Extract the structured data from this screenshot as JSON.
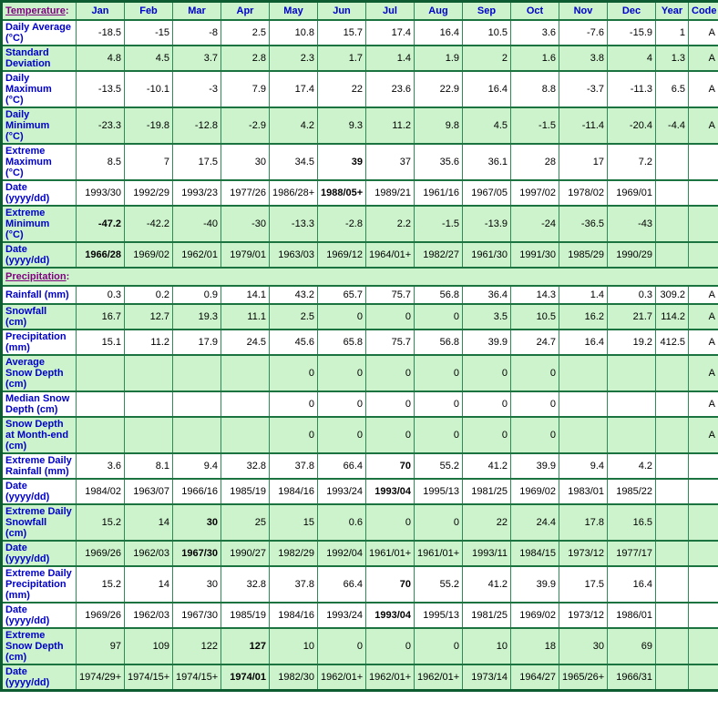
{
  "colors": {
    "row_green": "#ccf3cc",
    "row_white": "#ffffff",
    "border_dark": "#0d5c31",
    "border_mid": "#1b7340",
    "border_light": "#2e8b57",
    "label_blue": "#0000cc",
    "section_purple": "#800080"
  },
  "table": {
    "temperature_section": {
      "title": "Temperature",
      "colon": ":"
    },
    "column_headers": [
      "Jan",
      "Feb",
      "Mar",
      "Apr",
      "May",
      "Jun",
      "Jul",
      "Aug",
      "Sep",
      "Oct",
      "Nov",
      "Dec",
      "Year",
      "Code"
    ],
    "rows": [
      {
        "name": "daily-average",
        "label": "Daily Average\n(°C)",
        "bg": "w",
        "values": [
          "-18.5",
          "-15",
          "-8",
          "2.5",
          "10.8",
          "15.7",
          "17.4",
          "16.4",
          "10.5",
          "3.6",
          "-7.6",
          "-15.9",
          "1",
          "A"
        ]
      },
      {
        "name": "standard-deviation",
        "label": "Standard\nDeviation",
        "bg": "g",
        "values": [
          "4.8",
          "4.5",
          "3.7",
          "2.8",
          "2.3",
          "1.7",
          "1.4",
          "1.9",
          "2",
          "1.6",
          "3.8",
          "4",
          "1.3",
          "A"
        ]
      },
      {
        "name": "daily-maximum",
        "label": "Daily\nMaximum\n(°C)",
        "bg": "w",
        "values": [
          "-13.5",
          "-10.1",
          "-3",
          "7.9",
          "17.4",
          "22",
          "23.6",
          "22.9",
          "16.4",
          "8.8",
          "-3.7",
          "-11.3",
          "6.5",
          "A"
        ]
      },
      {
        "name": "daily-minimum",
        "label": "Daily\nMinimum\n(°C)",
        "bg": "g",
        "values": [
          "-23.3",
          "-19.8",
          "-12.8",
          "-2.9",
          "4.2",
          "9.3",
          "11.2",
          "9.8",
          "4.5",
          "-1.5",
          "-11.4",
          "-20.4",
          "-4.4",
          "A"
        ]
      },
      {
        "name": "extreme-maximum",
        "label": "Extreme\nMaximum\n(°C)",
        "bg": "w",
        "sep": true,
        "bold": [
          5
        ],
        "values": [
          "8.5",
          "7",
          "17.5",
          "30",
          "34.5",
          "39",
          "37",
          "35.6",
          "36.1",
          "28",
          "17",
          "7.2",
          "",
          ""
        ]
      },
      {
        "name": "extreme-maximum-date",
        "label": "Date\n(yyyy/dd)",
        "bg": "w",
        "bold": [
          5
        ],
        "values": [
          "1993/30",
          "1992/29",
          "1993/23",
          "1977/26",
          "1986/28+",
          "1988/05+",
          "1989/21",
          "1961/16",
          "1967/05",
          "1997/02",
          "1978/02",
          "1969/01",
          "",
          ""
        ]
      },
      {
        "name": "extreme-minimum",
        "label": "Extreme\nMinimum\n(°C)",
        "bg": "g",
        "bold": [
          0
        ],
        "values": [
          "-47.2",
          "-42.2",
          "-40",
          "-30",
          "-13.3",
          "-2.8",
          "2.2",
          "-1.5",
          "-13.9",
          "-24",
          "-36.5",
          "-43",
          "",
          ""
        ]
      },
      {
        "name": "extreme-minimum-date",
        "label": "Date\n(yyyy/dd)",
        "bg": "g",
        "bold": [
          0
        ],
        "values": [
          "1966/28",
          "1969/02",
          "1962/01",
          "1979/01",
          "1963/03",
          "1969/12",
          "1964/01+",
          "1982/27",
          "1961/30",
          "1991/30",
          "1985/29",
          "1990/29",
          "",
          ""
        ]
      },
      {
        "type": "section",
        "name": "precipitation-section",
        "title": "Precipitation",
        "colon": ":",
        "sep": true
      },
      {
        "name": "rainfall",
        "label": "Rainfall (mm)",
        "bg": "w",
        "values": [
          "0.3",
          "0.2",
          "0.9",
          "14.1",
          "43.2",
          "65.7",
          "75.7",
          "56.8",
          "36.4",
          "14.3",
          "1.4",
          "0.3",
          "309.2",
          "A"
        ]
      },
      {
        "name": "snowfall",
        "label": "Snowfall\n(cm)",
        "bg": "g",
        "values": [
          "16.7",
          "12.7",
          "19.3",
          "11.1",
          "2.5",
          "0",
          "0",
          "0",
          "3.5",
          "10.5",
          "16.2",
          "21.7",
          "114.2",
          "A"
        ]
      },
      {
        "name": "precipitation",
        "label": "Precipitation\n(mm)",
        "bg": "w",
        "values": [
          "15.1",
          "11.2",
          "17.9",
          "24.5",
          "45.6",
          "65.8",
          "75.7",
          "56.8",
          "39.9",
          "24.7",
          "16.4",
          "19.2",
          "412.5",
          "A"
        ]
      },
      {
        "name": "average-snow-depth",
        "label": "Average\nSnow Depth\n(cm)",
        "bg": "g",
        "values": [
          "",
          "",
          "",
          "",
          "0",
          "0",
          "0",
          "0",
          "0",
          "0",
          "",
          "",
          "",
          "A"
        ]
      },
      {
        "name": "median-snow-depth",
        "label": "Median Snow\nDepth (cm)",
        "bg": "w",
        "values": [
          "",
          "",
          "",
          "",
          "0",
          "0",
          "0",
          "0",
          "0",
          "0",
          "",
          "",
          "",
          "A"
        ]
      },
      {
        "name": "snow-depth-month-end",
        "label": "Snow Depth\nat Month-end\n(cm)",
        "bg": "g",
        "values": [
          "",
          "",
          "",
          "",
          "0",
          "0",
          "0",
          "0",
          "0",
          "0",
          "",
          "",
          "",
          "A"
        ]
      },
      {
        "name": "extreme-daily-rainfall",
        "label": "Extreme Daily\nRainfall (mm)",
        "bg": "w",
        "sep": true,
        "bold": [
          6
        ],
        "values": [
          "3.6",
          "8.1",
          "9.4",
          "32.8",
          "37.8",
          "66.4",
          "70",
          "55.2",
          "41.2",
          "39.9",
          "9.4",
          "4.2",
          "",
          ""
        ]
      },
      {
        "name": "extreme-daily-rainfall-date",
        "label": "Date\n(yyyy/dd)",
        "bg": "w",
        "bold": [
          6
        ],
        "values": [
          "1984/02",
          "1963/07",
          "1966/16",
          "1985/19",
          "1984/16",
          "1993/24",
          "1993/04",
          "1995/13",
          "1981/25",
          "1969/02",
          "1983/01",
          "1985/22",
          "",
          ""
        ]
      },
      {
        "name": "extreme-daily-snowfall",
        "label": "Extreme Daily\nSnowfall\n(cm)",
        "bg": "g",
        "bold": [
          2
        ],
        "values": [
          "15.2",
          "14",
          "30",
          "25",
          "15",
          "0.6",
          "0",
          "0",
          "22",
          "24.4",
          "17.8",
          "16.5",
          "",
          ""
        ]
      },
      {
        "name": "extreme-daily-snowfall-date",
        "label": "Date\n(yyyy/dd)",
        "bg": "g",
        "bold": [
          2
        ],
        "values": [
          "1969/26",
          "1962/03",
          "1967/30",
          "1990/27",
          "1982/29",
          "1992/04",
          "1961/01+",
          "1961/01+",
          "1993/11",
          "1984/15",
          "1973/12",
          "1977/17",
          "",
          ""
        ]
      },
      {
        "name": "extreme-daily-precipitation",
        "label": "Extreme Daily\nPrecipitation\n(mm)",
        "bg": "w",
        "bold": [
          6
        ],
        "values": [
          "15.2",
          "14",
          "30",
          "32.8",
          "37.8",
          "66.4",
          "70",
          "55.2",
          "41.2",
          "39.9",
          "17.5",
          "16.4",
          "",
          ""
        ]
      },
      {
        "name": "extreme-daily-precipitation-date",
        "label": "Date\n(yyyy/dd)",
        "bg": "w",
        "bold": [
          6
        ],
        "values": [
          "1969/26",
          "1962/03",
          "1967/30",
          "1985/19",
          "1984/16",
          "1993/24",
          "1993/04",
          "1995/13",
          "1981/25",
          "1969/02",
          "1973/12",
          "1986/01",
          "",
          ""
        ]
      },
      {
        "name": "extreme-snow-depth",
        "label": "Extreme\nSnow Depth\n(cm)",
        "bg": "g",
        "bold": [
          3
        ],
        "values": [
          "97",
          "109",
          "122",
          "127",
          "10",
          "0",
          "0",
          "0",
          "10",
          "18",
          "30",
          "69",
          "",
          ""
        ]
      },
      {
        "name": "extreme-snow-depth-date",
        "label": "Date\n(yyyy/dd)",
        "bg": "g",
        "bold": [
          3
        ],
        "values": [
          "1974/29+",
          "1974/15+",
          "1974/15+",
          "1974/01",
          "1982/30",
          "1962/01+",
          "1962/01+",
          "1962/01+",
          "1973/14",
          "1964/27",
          "1965/26+",
          "1966/31",
          "",
          ""
        ]
      }
    ]
  }
}
